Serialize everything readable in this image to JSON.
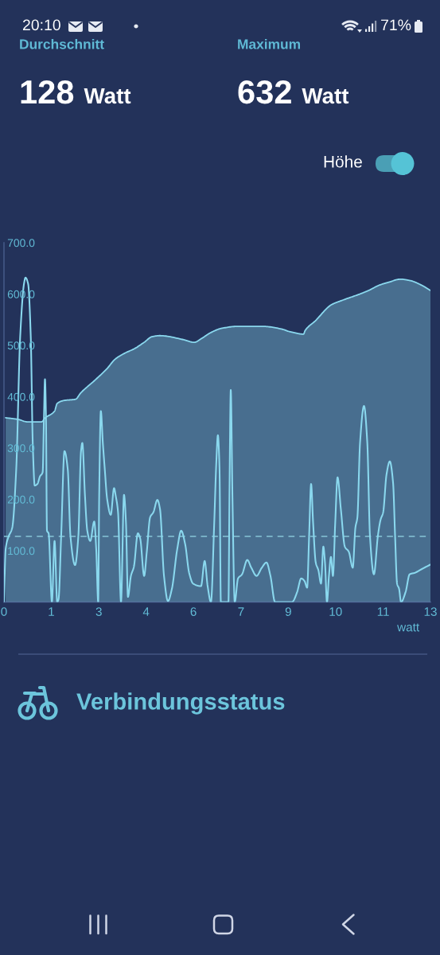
{
  "chart_data": {
    "type": "line",
    "annotations": [
      "20:10",
      "71%",
      "Durchschnitt",
      "128 Watt",
      "Maximum",
      "632 Watt",
      "Höhe",
      "Verbindungsstatus"
    ],
    "xlabel": "watt",
    "xlim": [
      0,
      12.9
    ],
    "xticks": [
      0,
      {
        "value": 1.43,
        "label": "1"
      },
      {
        "value": 2.87,
        "label": "3"
      },
      {
        "value": 4.3,
        "label": "4"
      },
      {
        "value": 5.73,
        "label": "6"
      },
      {
        "value": 7.17,
        "label": "7"
      },
      {
        "value": 8.6,
        "label": "9"
      },
      {
        "value": 10.03,
        "label": "10"
      },
      {
        "value": 11.47,
        "label": "11"
      },
      {
        "value": 12.9,
        "label": "13"
      }
    ],
    "ylim": [
      0,
      700
    ],
    "yticks": [
      {
        "value": 100,
        "label": "100.0"
      },
      {
        "value": 200,
        "label": "200.0"
      },
      {
        "value": 300,
        "label": "300.0"
      },
      {
        "value": 400,
        "label": "400.0"
      },
      {
        "value": 500,
        "label": "500.0"
      },
      {
        "value": 600,
        "label": "600.0"
      },
      {
        "value": 700,
        "label": "700.0"
      }
    ],
    "ref_lines": [
      {
        "axis": "y",
        "value": 128,
        "color": "#86c5d8",
        "line_style": "dashed"
      }
    ],
    "series": [
      {
        "type": "area",
        "color": "#8ad8ee",
        "x": [
          0.05,
          0.41,
          0.72,
          1.13,
          1.25,
          1.53,
          1.61,
          1.85,
          2.16,
          2.33,
          2.73,
          3.12,
          3.36,
          3.69,
          3.93,
          4.24,
          4.48,
          4.72,
          5.44,
          5.75,
          5.99,
          6.23,
          6.57,
          7.05,
          7.84,
          8.39,
          8.63,
          9.06,
          9.11,
          9.42,
          9.9,
          10.24,
          10.72,
          11.03,
          11.34,
          11.68,
          11.99,
          12.3,
          12.64,
          12.9
        ],
        "values": [
          359,
          356,
          351,
          351,
          359,
          372,
          387,
          393,
          395,
          408,
          431,
          455,
          473,
          486,
          493,
          506,
          517,
          519,
          511,
          506,
          514,
          524,
          533,
          537,
          537,
          532,
          527,
          522,
          529,
          548,
          579,
          588,
          599,
          607,
          617,
          624,
          629,
          626,
          617,
          607
        ]
      },
      {
        "color": "#8ad8ee",
        "x": [
          0,
          0.05,
          0.13,
          0.25,
          0.37,
          0.49,
          0.61,
          0.65,
          0.73,
          0.81,
          0.87,
          0.93,
          1.01,
          1.09,
          1.17,
          1.21,
          1.24,
          1.27,
          1.3,
          1.35,
          1.45,
          1.53,
          1.61,
          1.65,
          1.73,
          1.83,
          1.93,
          2.01,
          2.15,
          2.25,
          2.33,
          2.37,
          2.45,
          2.52,
          2.61,
          2.73,
          2.79,
          2.85,
          2.88,
          2.93,
          2.99,
          3.05,
          3.12,
          3.23,
          3.33,
          3.38,
          3.45,
          3.54,
          3.63,
          3.69,
          3.75,
          3.84,
          3.93,
          4.05,
          4.12,
          4.24,
          4.32,
          4.42,
          4.52,
          4.64,
          4.72,
          4.84,
          4.96,
          5.08,
          5.24,
          5.36,
          5.48,
          5.6,
          5.72,
          5.96,
          6.07,
          6.16,
          6.26,
          6.36,
          6.42,
          6.47,
          6.52,
          6.56,
          6.79,
          6.82,
          6.86,
          6.91,
          6.98,
          7.08,
          7.2,
          7.36,
          7.48,
          7.64,
          7.8,
          7.94,
          8.06,
          8.2,
          8.72,
          8.75,
          8.87,
          8.99,
          9.09,
          9.17,
          9.23,
          9.29,
          9.35,
          9.43,
          9.51,
          9.59,
          9.66,
          9.71,
          9.77,
          9.83,
          9.89,
          9.95,
          10.02,
          10.09,
          10.19,
          10.31,
          10.43,
          10.55,
          10.63,
          10.69,
          10.77,
          10.89,
          10.99,
          11.07,
          11.19,
          11.31,
          11.39,
          11.47,
          11.57,
          11.67,
          11.77,
          11.83,
          11.89,
          11.95,
          12.01,
          12.15,
          12.27,
          12.43,
          12.63,
          12.9
        ],
        "values": [
          0,
          103,
          126,
          145,
          258,
          517,
          622,
          632,
          620,
          517,
          310,
          227,
          230,
          245,
          253,
          362,
          434,
          362,
          139,
          134,
          0,
          119,
          0,
          5,
          129,
          294,
          258,
          129,
          72,
          129,
          294,
          310,
          207,
          139,
          119,
          157,
          103,
          0,
          207,
          372,
          310,
          258,
          201,
          170,
          222,
          207,
          175,
          0,
          209,
          155,
          10,
          51,
          69,
          134,
          124,
          51,
          98,
          165,
          175,
          199,
          181,
          51,
          2,
          26,
          103,
          139,
          113,
          57,
          36,
          31,
          80,
          31,
          0,
          155,
          268,
          325,
          258,
          0,
          0,
          207,
          413,
          207,
          0,
          46,
          54,
          82,
          67,
          51,
          67,
          77,
          51,
          0,
          0,
          2,
          20,
          46,
          41,
          28,
          129,
          230,
          155,
          77,
          62,
          36,
          108,
          77,
          0,
          51,
          88,
          51,
          155,
          243,
          181,
          108,
          98,
          67,
          145,
          165,
          310,
          382,
          310,
          129,
          54,
          129,
          160,
          175,
          248,
          274,
          232,
          129,
          36,
          26,
          0,
          20,
          54,
          57,
          64,
          73
        ]
      }
    ]
  }
}
